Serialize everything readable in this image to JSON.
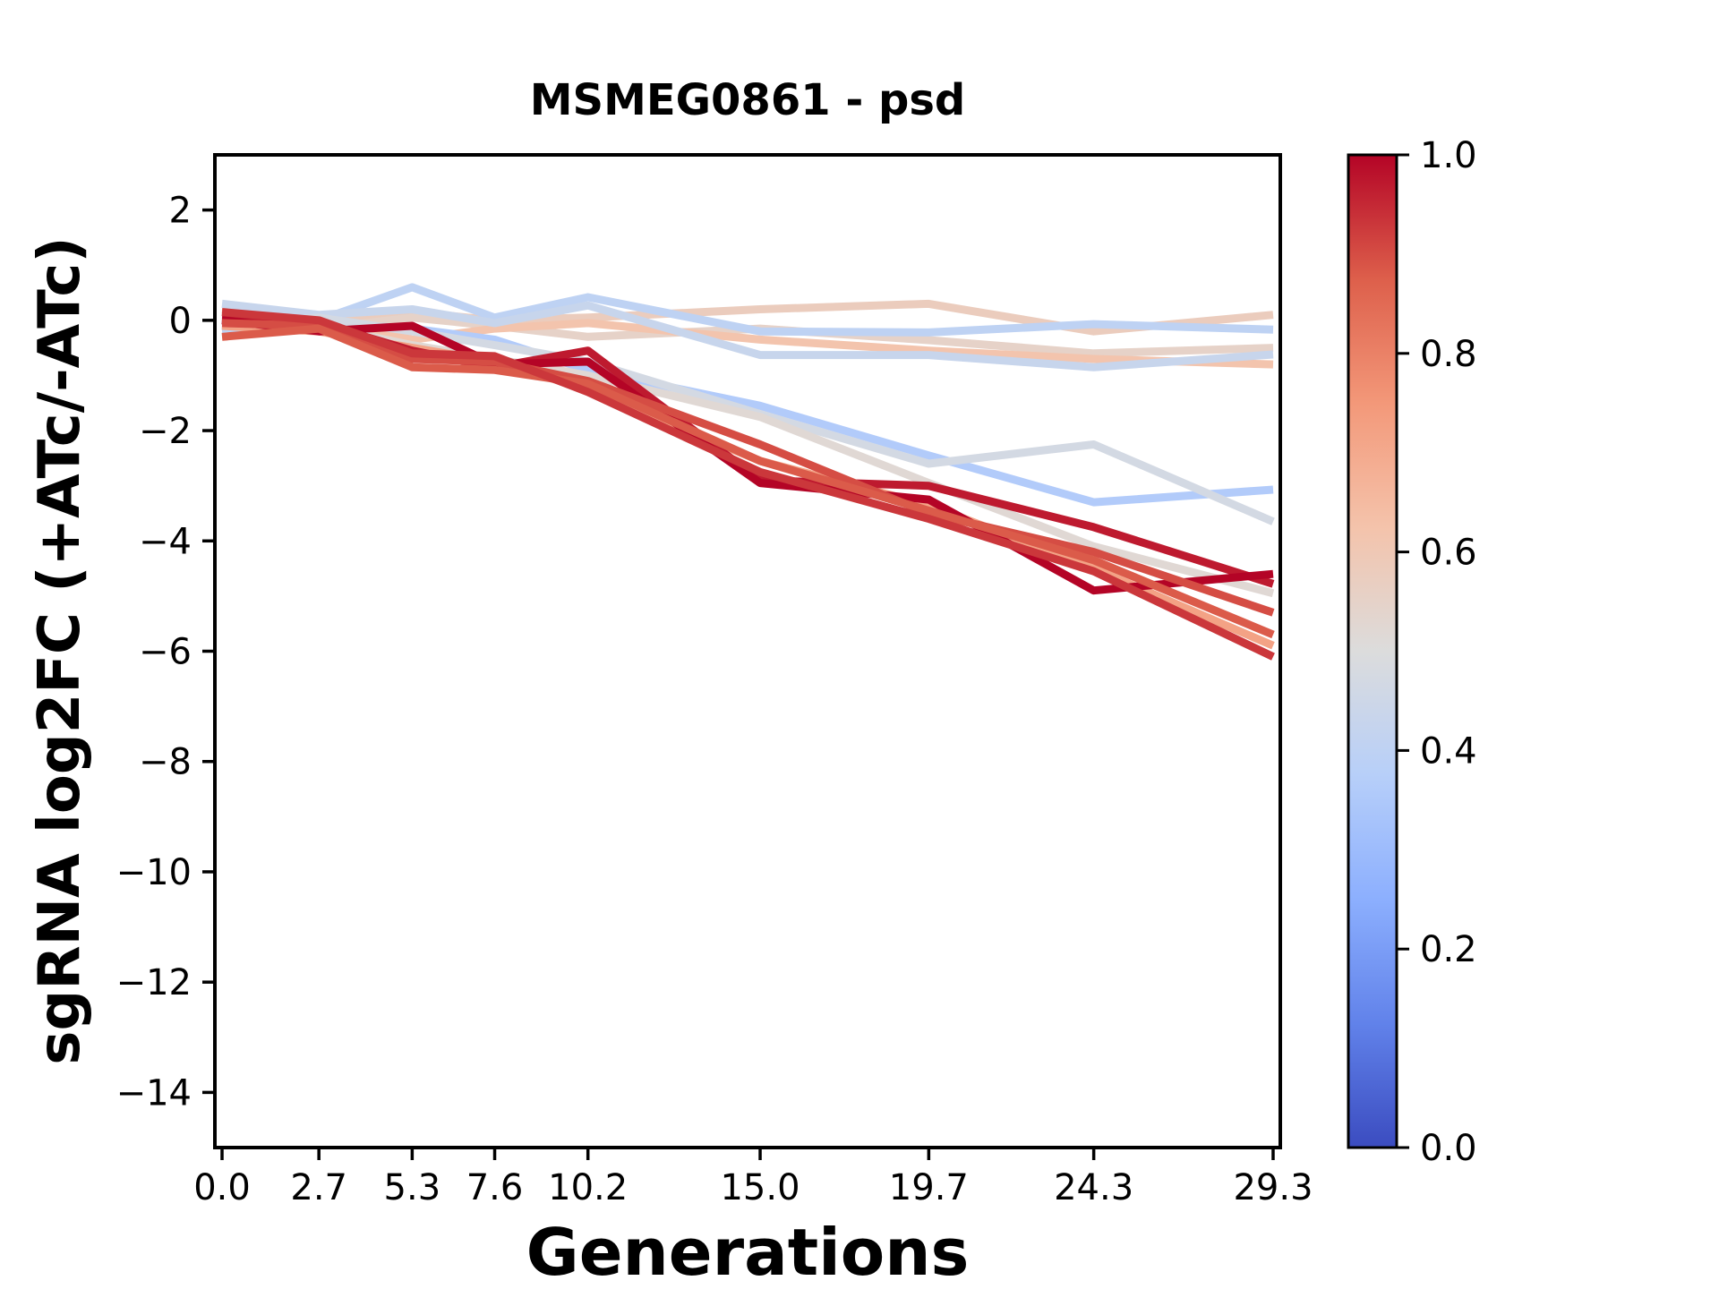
{
  "chart_data": {
    "type": "line",
    "title": "MSMEG0861 - psd",
    "xlabel": "Generations",
    "ylabel": "sgRNA log2FC (+ATc/-ATc)",
    "x": [
      0.0,
      2.7,
      5.3,
      7.6,
      10.2,
      15.0,
      19.7,
      24.3,
      29.3
    ],
    "xtick_labels": [
      "0.0",
      "2.7",
      "5.3",
      "7.6",
      "10.2",
      "15.0",
      "19.7",
      "24.3",
      "29.3"
    ],
    "ytick_values": [
      2,
      0,
      -2,
      -4,
      -6,
      -8,
      -10,
      -12,
      -14
    ],
    "ytick_labels": [
      "2",
      "0",
      "−2",
      "−4",
      "−6",
      "−8",
      "−10",
      "−12",
      "−14"
    ],
    "xlim": [
      -0.2,
      29.5
    ],
    "ylim": [
      -15.0,
      3.0
    ],
    "grid": false,
    "legend": "none",
    "series": [
      {
        "name": "line-01",
        "color_value": 0.58,
        "values": [
          0.1,
          0.0,
          0.15,
          0.0,
          0.05,
          0.2,
          0.3,
          -0.2,
          0.1
        ]
      },
      {
        "name": "line-02",
        "color_value": 0.55,
        "values": [
          -0.1,
          -0.15,
          0.05,
          -0.1,
          -0.3,
          -0.15,
          -0.36,
          -0.6,
          -0.5
        ]
      },
      {
        "name": "line-03",
        "color_value": 0.62,
        "values": [
          0.2,
          0.05,
          -0.35,
          -0.15,
          -0.05,
          -0.35,
          -0.55,
          -0.7,
          -0.8
        ]
      },
      {
        "name": "line-04",
        "color_value": 0.4,
        "values": [
          -0.2,
          0.0,
          0.6,
          0.05,
          0.42,
          -0.2,
          -0.22,
          -0.07,
          -0.17
        ]
      },
      {
        "name": "line-05",
        "color_value": 0.43,
        "values": [
          0.3,
          0.1,
          0.2,
          -0.05,
          0.27,
          -0.63,
          -0.63,
          -0.85,
          -0.62
        ]
      },
      {
        "name": "line-06",
        "color_value": 0.36,
        "values": [
          0.0,
          -0.05,
          -0.15,
          -0.35,
          -0.9,
          -1.55,
          -2.45,
          -3.3,
          -3.07
        ]
      },
      {
        "name": "line-07",
        "color_value": 0.47,
        "values": [
          -0.1,
          0.05,
          -0.2,
          -0.45,
          -0.75,
          -1.7,
          -2.6,
          -2.25,
          -3.65
        ]
      },
      {
        "name": "line-08",
        "color_value": 0.52,
        "values": [
          0.0,
          -0.1,
          -0.45,
          -0.7,
          -1.0,
          -1.75,
          -2.95,
          -4.1,
          -4.95
        ]
      },
      {
        "name": "line-09",
        "color_value": 0.72,
        "values": [
          -0.1,
          -0.2,
          -0.5,
          -0.75,
          -1.25,
          -2.55,
          -3.35,
          -4.5,
          -5.9
        ]
      },
      {
        "name": "line-10",
        "color_value": 0.97,
        "values": [
          0.05,
          -0.05,
          -0.55,
          -0.85,
          -0.55,
          -2.9,
          -3.0,
          -3.75,
          -4.78
        ]
      },
      {
        "name": "line-11",
        "color_value": 1.0,
        "values": [
          0.0,
          -0.2,
          -0.1,
          -0.8,
          -0.75,
          -2.95,
          -3.25,
          -4.9,
          -4.6
        ]
      },
      {
        "name": "line-12",
        "color_value": 0.9,
        "values": [
          -0.05,
          -0.1,
          -0.7,
          -0.75,
          -1.1,
          -2.25,
          -3.5,
          -4.2,
          -5.3
        ]
      },
      {
        "name": "line-13",
        "color_value": 0.88,
        "values": [
          -0.3,
          -0.15,
          -0.85,
          -0.9,
          -1.15,
          -2.55,
          -3.45,
          -4.35,
          -5.7
        ]
      },
      {
        "name": "line-14",
        "color_value": 0.93,
        "values": [
          0.15,
          0.0,
          -0.6,
          -0.65,
          -1.3,
          -2.75,
          -3.6,
          -4.55,
          -6.1
        ]
      }
    ],
    "colorbar": {
      "min": 0.0,
      "max": 1.0,
      "tick_values": [
        1.0,
        0.8,
        0.6,
        0.4,
        0.2,
        0.0
      ],
      "tick_labels": [
        "1.0",
        "0.8",
        "0.6",
        "0.4",
        "0.2",
        "0.0"
      ],
      "colormap": "coolwarm",
      "colormap_anchors": [
        {
          "t": 0.0,
          "color": "#3b4cc0"
        },
        {
          "t": 0.125,
          "color": "#6182ea"
        },
        {
          "t": 0.25,
          "color": "#8caffe"
        },
        {
          "t": 0.375,
          "color": "#b7cff9"
        },
        {
          "t": 0.5,
          "color": "#dcdcdc"
        },
        {
          "t": 0.625,
          "color": "#f4c3ab"
        },
        {
          "t": 0.75,
          "color": "#f39879"
        },
        {
          "t": 0.875,
          "color": "#dd5f4b"
        },
        {
          "t": 1.0,
          "color": "#b40426"
        }
      ]
    },
    "axis_color": "#000000",
    "background_color": "#ffffff"
  }
}
